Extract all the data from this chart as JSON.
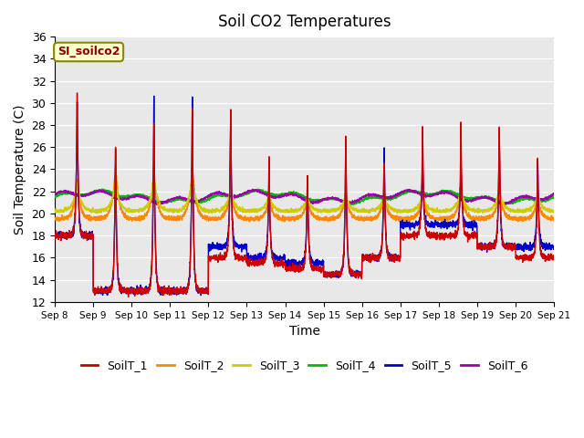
{
  "title": "Soil CO2 Temperatures",
  "xlabel": "Time",
  "ylabel": "Soil Temperature (C)",
  "ylim": [
    12,
    36
  ],
  "annotation": "SI_soilco2",
  "legend_labels": [
    "SoilT_1",
    "SoilT_2",
    "SoilT_3",
    "SoilT_4",
    "SoilT_5",
    "SoilT_6"
  ],
  "line_colors": [
    "#cc0000",
    "#ff8800",
    "#cccc00",
    "#00bb00",
    "#0000cc",
    "#9900aa"
  ],
  "background_color": "#e8e8e8",
  "n_days": 13,
  "start_day": 8,
  "points_per_day": 288,
  "xtick_days": [
    8,
    9,
    10,
    11,
    12,
    13,
    14,
    15,
    16,
    17,
    18,
    19,
    20,
    21
  ]
}
